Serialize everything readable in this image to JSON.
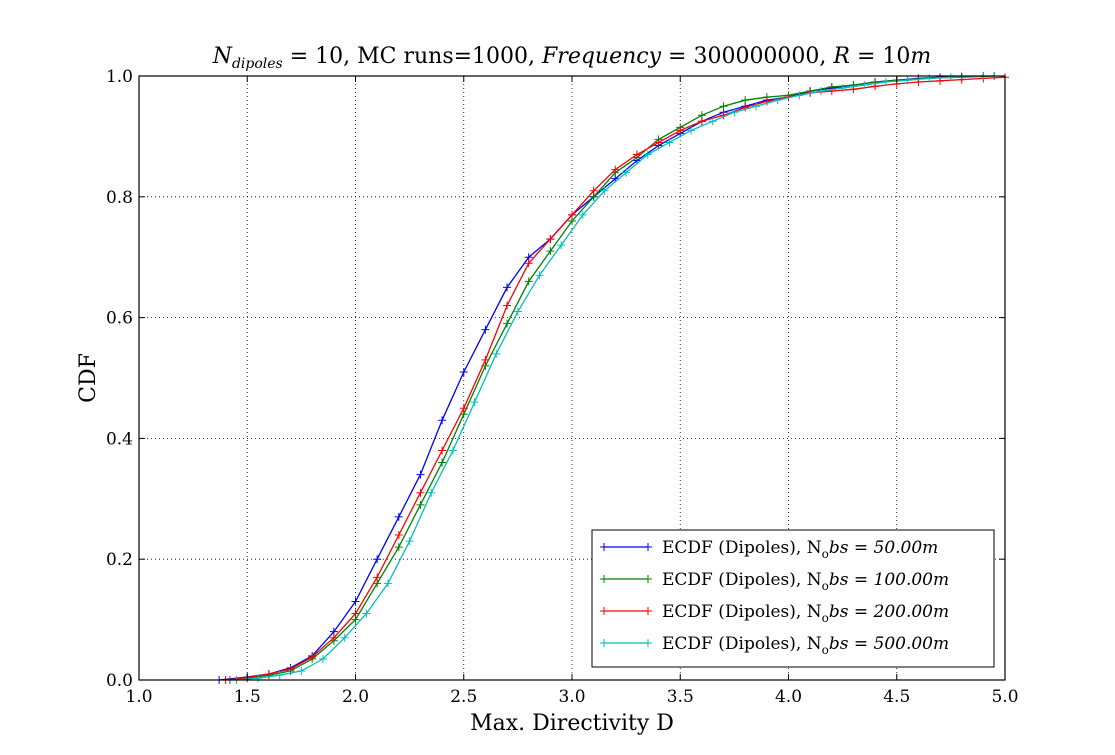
{
  "chart_data": {
    "type": "line",
    "title": "N_dipoles = 10, MC runs=1000, Frequency = 300000000, R = 10m",
    "title_parts": {
      "n_symbol": "N",
      "n_subscript": "dipoles",
      "part1": " = 10, MC runs=1000, ",
      "freq_label": "Frequency",
      "part2": " = 300000000, ",
      "r_label": "R",
      "part3": " = 10",
      "r_unit": "m"
    },
    "xlabel": "Max. Directivity D",
    "ylabel": "CDF",
    "xlim": [
      1.0,
      5.0
    ],
    "ylim": [
      0.0,
      1.0
    ],
    "xticks": [
      "1.0",
      "1.5",
      "2.0",
      "2.5",
      "3.0",
      "3.5",
      "4.0",
      "4.5",
      "5.0"
    ],
    "yticks": [
      "0.0",
      "0.2",
      "0.4",
      "0.6",
      "0.8",
      "1.0"
    ],
    "grid": true,
    "legend_position": "lower-right",
    "series": [
      {
        "name": "ECDF (Dipoles), N_obs = 50.00m",
        "legend": {
          "prefix": "ECDF (Dipoles), N",
          "sub": "o",
          "rest": "bs = 50.00",
          "unit": "m"
        },
        "color": "#0000ff",
        "points": [
          [
            1.37,
            0.0
          ],
          [
            1.5,
            0.005
          ],
          [
            1.6,
            0.01
          ],
          [
            1.7,
            0.02
          ],
          [
            1.8,
            0.04
          ],
          [
            1.9,
            0.08
          ],
          [
            2.0,
            0.13
          ],
          [
            2.1,
            0.2
          ],
          [
            2.2,
            0.27
          ],
          [
            2.3,
            0.34
          ],
          [
            2.4,
            0.43
          ],
          [
            2.5,
            0.51
          ],
          [
            2.6,
            0.58
          ],
          [
            2.7,
            0.65
          ],
          [
            2.8,
            0.7
          ],
          [
            2.9,
            0.73
          ],
          [
            3.0,
            0.77
          ],
          [
            3.1,
            0.8
          ],
          [
            3.2,
            0.83
          ],
          [
            3.3,
            0.86
          ],
          [
            3.4,
            0.885
          ],
          [
            3.5,
            0.905
          ],
          [
            3.6,
            0.925
          ],
          [
            3.7,
            0.94
          ],
          [
            3.8,
            0.95
          ],
          [
            3.9,
            0.96
          ],
          [
            4.0,
            0.965
          ],
          [
            4.1,
            0.975
          ],
          [
            4.2,
            0.98
          ],
          [
            4.3,
            0.985
          ],
          [
            4.4,
            0.99
          ],
          [
            4.5,
            0.993
          ],
          [
            4.6,
            0.996
          ],
          [
            4.7,
            0.998
          ],
          [
            4.8,
            0.999
          ],
          [
            4.9,
            1.0
          ]
        ]
      },
      {
        "name": "ECDF (Dipoles), N_obs = 100.00m",
        "legend": {
          "prefix": "ECDF (Dipoles), N",
          "sub": "o",
          "rest": "bs = 100.00",
          "unit": "m"
        },
        "color": "#008000",
        "points": [
          [
            1.42,
            0.0
          ],
          [
            1.5,
            0.003
          ],
          [
            1.6,
            0.008
          ],
          [
            1.7,
            0.015
          ],
          [
            1.8,
            0.035
          ],
          [
            1.9,
            0.065
          ],
          [
            2.0,
            0.1
          ],
          [
            2.1,
            0.16
          ],
          [
            2.2,
            0.22
          ],
          [
            2.3,
            0.29
          ],
          [
            2.4,
            0.36
          ],
          [
            2.5,
            0.44
          ],
          [
            2.6,
            0.52
          ],
          [
            2.7,
            0.59
          ],
          [
            2.8,
            0.66
          ],
          [
            2.9,
            0.71
          ],
          [
            3.0,
            0.76
          ],
          [
            3.1,
            0.8
          ],
          [
            3.2,
            0.84
          ],
          [
            3.3,
            0.865
          ],
          [
            3.4,
            0.895
          ],
          [
            3.5,
            0.915
          ],
          [
            3.6,
            0.935
          ],
          [
            3.7,
            0.95
          ],
          [
            3.8,
            0.96
          ],
          [
            3.9,
            0.965
          ],
          [
            4.0,
            0.968
          ],
          [
            4.1,
            0.975
          ],
          [
            4.2,
            0.982
          ],
          [
            4.3,
            0.985
          ],
          [
            4.4,
            0.99
          ],
          [
            4.5,
            0.993
          ],
          [
            4.6,
            0.995
          ],
          [
            4.7,
            0.997
          ],
          [
            4.8,
            0.998
          ],
          [
            4.95,
            1.0
          ]
        ]
      },
      {
        "name": "ECDF (Dipoles), N_obs = 200.00m",
        "legend": {
          "prefix": "ECDF (Dipoles), N",
          "sub": "o",
          "rest": "bs = 200.00",
          "unit": "m"
        },
        "color": "#ff0000",
        "points": [
          [
            1.4,
            0.0
          ],
          [
            1.5,
            0.004
          ],
          [
            1.6,
            0.01
          ],
          [
            1.7,
            0.018
          ],
          [
            1.8,
            0.038
          ],
          [
            1.9,
            0.07
          ],
          [
            2.0,
            0.11
          ],
          [
            2.1,
            0.17
          ],
          [
            2.2,
            0.24
          ],
          [
            2.3,
            0.31
          ],
          [
            2.4,
            0.38
          ],
          [
            2.5,
            0.45
          ],
          [
            2.6,
            0.53
          ],
          [
            2.7,
            0.62
          ],
          [
            2.8,
            0.69
          ],
          [
            2.9,
            0.73
          ],
          [
            3.0,
            0.77
          ],
          [
            3.1,
            0.81
          ],
          [
            3.2,
            0.845
          ],
          [
            3.3,
            0.87
          ],
          [
            3.4,
            0.89
          ],
          [
            3.5,
            0.91
          ],
          [
            3.6,
            0.925
          ],
          [
            3.7,
            0.935
          ],
          [
            3.8,
            0.948
          ],
          [
            3.9,
            0.958
          ],
          [
            4.0,
            0.965
          ],
          [
            4.1,
            0.972
          ],
          [
            4.2,
            0.975
          ],
          [
            4.3,
            0.978
          ],
          [
            4.4,
            0.983
          ],
          [
            4.5,
            0.987
          ],
          [
            4.6,
            0.99
          ],
          [
            4.7,
            0.992
          ],
          [
            4.8,
            0.994
          ],
          [
            4.9,
            0.996
          ],
          [
            5.0,
            0.998
          ]
        ]
      },
      {
        "name": "ECDF (Dipoles), N_obs = 500.00m",
        "legend": {
          "prefix": "ECDF (Dipoles), N",
          "sub": "o",
          "rest": "bs = 500.00",
          "unit": "m"
        },
        "color": "#00bfbf",
        "points": [
          [
            1.45,
            0.0
          ],
          [
            1.55,
            0.003
          ],
          [
            1.65,
            0.008
          ],
          [
            1.75,
            0.015
          ],
          [
            1.85,
            0.035
          ],
          [
            1.95,
            0.07
          ],
          [
            2.05,
            0.11
          ],
          [
            2.15,
            0.16
          ],
          [
            2.25,
            0.23
          ],
          [
            2.35,
            0.31
          ],
          [
            2.45,
            0.38
          ],
          [
            2.55,
            0.46
          ],
          [
            2.65,
            0.54
          ],
          [
            2.75,
            0.61
          ],
          [
            2.85,
            0.67
          ],
          [
            2.95,
            0.72
          ],
          [
            3.05,
            0.77
          ],
          [
            3.15,
            0.81
          ],
          [
            3.25,
            0.84
          ],
          [
            3.35,
            0.87
          ],
          [
            3.45,
            0.89
          ],
          [
            3.55,
            0.91
          ],
          [
            3.65,
            0.925
          ],
          [
            3.75,
            0.94
          ],
          [
            3.85,
            0.95
          ],
          [
            3.95,
            0.96
          ],
          [
            4.05,
            0.968
          ],
          [
            4.15,
            0.975
          ],
          [
            4.25,
            0.98
          ],
          [
            4.35,
            0.985
          ],
          [
            4.45,
            0.99
          ],
          [
            4.55,
            0.993
          ],
          [
            4.65,
            0.996
          ],
          [
            4.75,
            0.998
          ],
          [
            4.9,
            1.0
          ]
        ]
      }
    ]
  }
}
